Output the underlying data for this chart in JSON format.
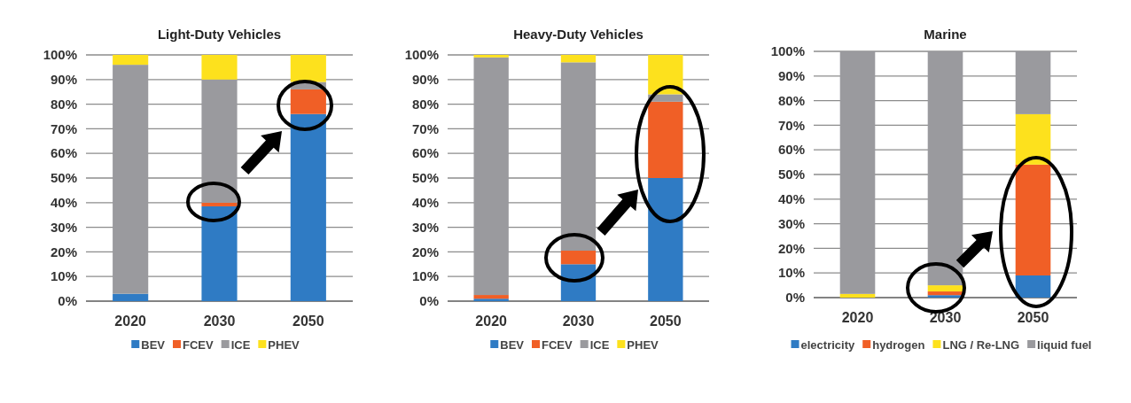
{
  "chart_data": [
    {
      "type": "bar",
      "title": "Light-Duty Vehicles",
      "categories": [
        "2020",
        "2030",
        "2050"
      ],
      "stacked": true,
      "ylim": [
        0,
        100
      ],
      "yticks": [
        {
          "value": 0,
          "label": "0%"
        },
        {
          "value": 10,
          "label": "10%"
        },
        {
          "value": 20,
          "label": "20%"
        },
        {
          "value": 30,
          "label": "30%"
        },
        {
          "value": 40,
          "label": "40%"
        },
        {
          "value": 50,
          "label": "50%"
        },
        {
          "value": 60,
          "label": "60%"
        },
        {
          "value": 70,
          "label": "70%"
        },
        {
          "value": 80,
          "label": "80%"
        },
        {
          "value": 90,
          "label": "90%"
        },
        {
          "value": 100,
          "label": "100%"
        }
      ],
      "grid": "y",
      "legend": "bottom",
      "series": [
        {
          "name": "BEV",
          "color": "#2f7bc4",
          "values": [
            3,
            38.5,
            76
          ]
        },
        {
          "name": "FCEV",
          "color": "#f05f26",
          "values": [
            0,
            1.5,
            10
          ]
        },
        {
          "name": "ICE",
          "color": "#9a9a9e",
          "values": [
            93,
            50,
            3
          ]
        },
        {
          "name": "PHEV",
          "color": "#fde11d",
          "values": [
            4,
            10,
            11
          ]
        }
      ]
    },
    {
      "type": "bar",
      "title": "Heavy-Duty Vehicles",
      "categories": [
        "2020",
        "2030",
        "2050"
      ],
      "stacked": true,
      "ylim": [
        0,
        100
      ],
      "yticks": [
        {
          "value": 0,
          "label": "0%"
        },
        {
          "value": 10,
          "label": "10%"
        },
        {
          "value": 20,
          "label": "20%"
        },
        {
          "value": 30,
          "label": "30%"
        },
        {
          "value": 40,
          "label": "40%"
        },
        {
          "value": 50,
          "label": "50%"
        },
        {
          "value": 60,
          "label": "60%"
        },
        {
          "value": 70,
          "label": "70%"
        },
        {
          "value": 80,
          "label": "80%"
        },
        {
          "value": 90,
          "label": "90%"
        },
        {
          "value": 100,
          "label": "100%"
        }
      ],
      "grid": "y",
      "legend": "bottom",
      "series": [
        {
          "name": "BEV",
          "color": "#2f7bc4",
          "values": [
            1,
            15,
            50
          ]
        },
        {
          "name": "FCEV",
          "color": "#f05f26",
          "values": [
            1.5,
            5.5,
            31
          ]
        },
        {
          "name": "ICE",
          "color": "#9a9a9e",
          "values": [
            96.5,
            76.5,
            3
          ]
        },
        {
          "name": "PHEV",
          "color": "#fde11d",
          "values": [
            1,
            3,
            16
          ]
        }
      ]
    },
    {
      "type": "bar",
      "title": "Marine",
      "categories": [
        "2020",
        "2030",
        "2050"
      ],
      "stacked": true,
      "ylim": [
        0,
        100
      ],
      "yticks": [
        {
          "value": 0,
          "label": "0%"
        },
        {
          "value": 10,
          "label": "10%"
        },
        {
          "value": 20,
          "label": "20%"
        },
        {
          "value": 30,
          "label": "30%"
        },
        {
          "value": 40,
          "label": "40%"
        },
        {
          "value": 50,
          "label": "50%"
        },
        {
          "value": 60,
          "label": "60%"
        },
        {
          "value": 70,
          "label": "70%"
        },
        {
          "value": 80,
          "label": "80%"
        },
        {
          "value": 90,
          "label": "90%"
        },
        {
          "value": 100,
          "label": "100%"
        }
      ],
      "grid": "y",
      "legend": "bottom",
      "series": [
        {
          "name": "electricity",
          "color": "#2f7bc4",
          "values": [
            0,
            1,
            9
          ]
        },
        {
          "name": "hydrogen",
          "color": "#f05f26",
          "values": [
            0,
            1.5,
            45
          ]
        },
        {
          "name": "LNG / Re-LNG",
          "color": "#fde11d",
          "values": [
            1.5,
            2.5,
            20.5
          ]
        },
        {
          "name": "liquid fuel",
          "color": "#9a9a9e",
          "values": [
            98.5,
            95,
            25.5
          ]
        }
      ]
    }
  ]
}
